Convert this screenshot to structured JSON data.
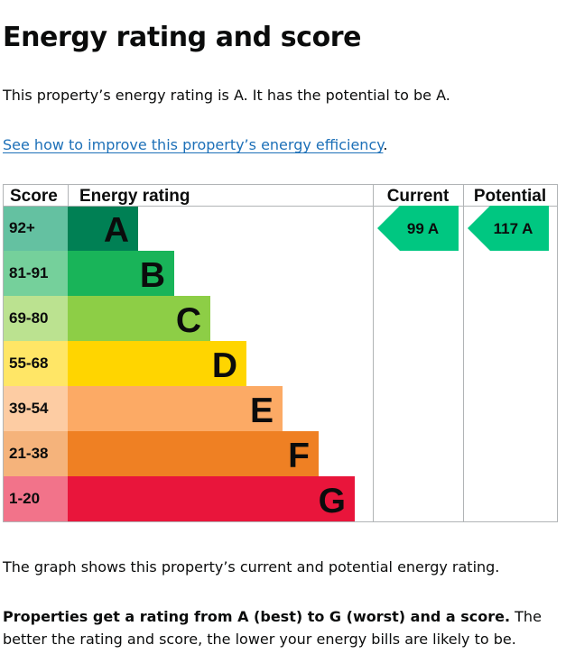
{
  "page": {
    "title": "Energy rating and score",
    "intro": "This property’s energy rating is A. It has the potential to be A.",
    "link_text": "See how to improve this property’s energy efficiency",
    "link_suffix": ".",
    "graph_description": "The graph shows this property’s current and potential energy rating.",
    "closing_bold": "Properties get a rating from A (best) to G (worst) and a score.",
    "closing_rest": " The better the rating and score, the lower your energy bills are likely to be."
  },
  "chart_data": {
    "type": "bar",
    "columns": {
      "score": "Score",
      "rating": "Energy rating",
      "current": "Current",
      "potential": "Potential"
    },
    "bands": [
      {
        "letter": "A",
        "score_range": "92+",
        "color": "#008054",
        "score_color": "#64c1a1"
      },
      {
        "letter": "B",
        "score_range": "81-91",
        "color": "#19b459",
        "score_color": "#75d09b"
      },
      {
        "letter": "C",
        "score_range": "69-80",
        "color": "#8dce46",
        "score_color": "#bbe290"
      },
      {
        "letter": "D",
        "score_range": "55-68",
        "color": "#ffd500",
        "score_color": "#ffe666"
      },
      {
        "letter": "E",
        "score_range": "39-54",
        "color": "#fcaa65",
        "score_color": "#fdcca3"
      },
      {
        "letter": "F",
        "score_range": "21-38",
        "color": "#ef8023",
        "score_color": "#f5b37b"
      },
      {
        "letter": "G",
        "score_range": "1-20",
        "color": "#e9153b",
        "score_color": "#f2738a"
      }
    ],
    "current": {
      "score": 99,
      "band": "A",
      "label": "99 A",
      "color": "#00c781"
    },
    "potential": {
      "score": 117,
      "band": "A",
      "label": "117 A",
      "color": "#00c781"
    }
  }
}
